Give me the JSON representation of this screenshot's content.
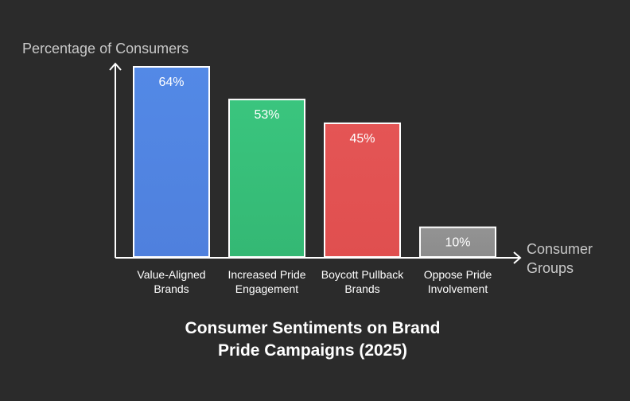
{
  "chart_data": {
    "type": "bar",
    "title_lines": [
      "Consumer Sentiments on Brand",
      "Pride Campaigns (2025)"
    ],
    "ylabel": "Percentage of Consumers",
    "xlabel_lines": [
      "Consumer",
      "Groups"
    ],
    "ylim": [
      0,
      64
    ],
    "categories": [
      [
        "Value-Aligned",
        "Brands"
      ],
      [
        "Increased Pride",
        "Engagement"
      ],
      [
        "Boycott Pullback",
        "Brands"
      ],
      [
        "Oppose Pride",
        "Involvement"
      ]
    ],
    "values": [
      64,
      53,
      45,
      10
    ],
    "value_labels": [
      "64%",
      "53%",
      "45%",
      "10%"
    ],
    "colors": [
      "#4f80dd",
      "#34b874",
      "#e04f4f",
      "#8c8c8c"
    ],
    "colors_top": [
      "#5389e6",
      "#3ac57e",
      "#e45555",
      "#939393"
    ]
  }
}
